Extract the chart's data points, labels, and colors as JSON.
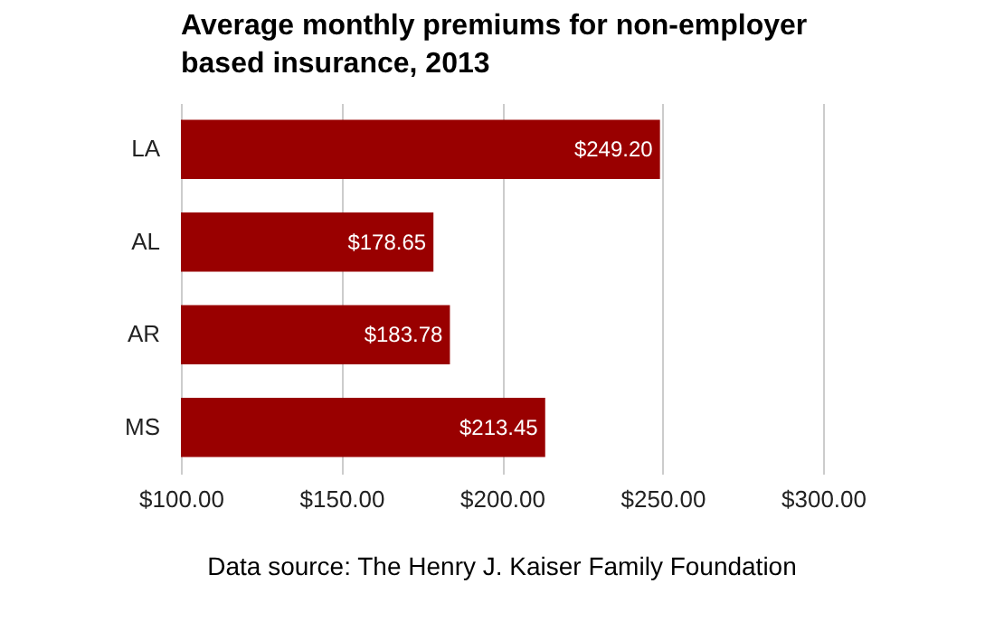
{
  "chart_data": {
    "type": "bar",
    "orientation": "horizontal",
    "title": "Average monthly premiums for non-employer\nbased insurance, 2013",
    "categories": [
      "LA",
      "AL",
      "AR",
      "MS"
    ],
    "values": [
      249.2,
      178.65,
      183.78,
      213.45
    ],
    "value_labels": [
      "$249.20",
      "$178.65",
      "$183.78",
      "$213.45"
    ],
    "color": "#990000",
    "xlim": [
      100,
      300
    ],
    "xticks": [
      {
        "value": 100,
        "label": "$100.00"
      },
      {
        "value": 150,
        "label": "$150.00"
      },
      {
        "value": 200,
        "label": "$200.00"
      },
      {
        "value": 250,
        "label": "$250.00"
      },
      {
        "value": 300,
        "label": "$300.00"
      }
    ],
    "grid": "x",
    "annotations": [
      "Data source: The Henry J. Kaiser Family Foundation"
    ]
  }
}
